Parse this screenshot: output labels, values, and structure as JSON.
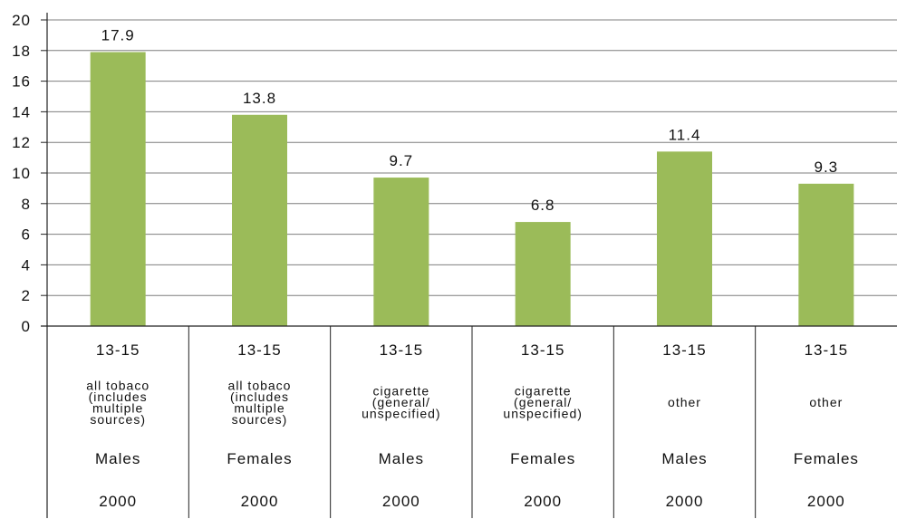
{
  "chart_data": {
    "type": "bar",
    "title": "",
    "xlabel": "",
    "ylabel": "",
    "ylim": [
      0,
      20
    ],
    "yticks": [
      0,
      2,
      4,
      6,
      8,
      10,
      12,
      14,
      16,
      18,
      20
    ],
    "grid": true,
    "bar_color": "#9bbb59",
    "categories": [
      {
        "age": "13-15",
        "product": [
          "all tobaco",
          "(includes",
          "multiple",
          "sources)"
        ],
        "sex": "Males",
        "year": "2000"
      },
      {
        "age": "13-15",
        "product": [
          "all tobaco",
          "(includes",
          "multiple",
          "sources)"
        ],
        "sex": "Females",
        "year": "2000"
      },
      {
        "age": "13-15",
        "product": [
          "cigarette",
          "(general/",
          "unspecified)"
        ],
        "sex": "Males",
        "year": "2000"
      },
      {
        "age": "13-15",
        "product": [
          "cigarette",
          "(general/",
          "unspecified)"
        ],
        "sex": "Females",
        "year": "2000"
      },
      {
        "age": "13-15",
        "product": [
          "other"
        ],
        "sex": "Males",
        "year": "2000"
      },
      {
        "age": "13-15",
        "product": [
          "other"
        ],
        "sex": "Females",
        "year": "2000"
      }
    ],
    "values": [
      17.9,
      13.8,
      9.7,
      6.8,
      11.4,
      9.3
    ],
    "data_labels": [
      "17.9",
      "13.8",
      "9.7",
      "6.8",
      "11.4",
      "9.3"
    ]
  }
}
